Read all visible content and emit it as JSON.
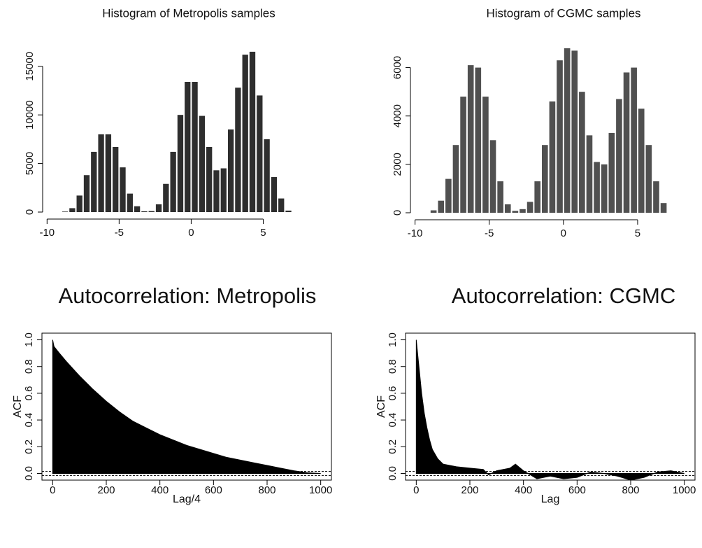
{
  "chart_data": [
    {
      "type": "histogram",
      "title": "Histogram of Metropolis samples",
      "color": "#2e2e2e",
      "bins": [
        -9,
        -8.5,
        -8,
        -7.5,
        -7,
        -6.5,
        -6,
        -5.5,
        -5,
        -4.5,
        -4,
        -3.5,
        -3,
        -2.5,
        -2,
        -1.5,
        -1,
        -0.5,
        0,
        0.5,
        1,
        1.5,
        2,
        2.5,
        3,
        3.5,
        4,
        4.5,
        5,
        5.5,
        6,
        6.5,
        7
      ],
      "values": [
        50,
        400,
        1700,
        3800,
        6200,
        8000,
        8000,
        6700,
        4600,
        1900,
        600,
        80,
        100,
        800,
        2900,
        6200,
        10000,
        13400,
        13400,
        9900,
        6700,
        4300,
        4500,
        8500,
        12800,
        16200,
        16500,
        12000,
        7500,
        3600,
        1400,
        150
      ],
      "xlim": [
        -10.5,
        7.5
      ],
      "xticks": [
        -10,
        -5,
        0,
        5
      ],
      "ylim": [
        0,
        17000
      ],
      "yticks": [
        0,
        5000,
        10000,
        15000
      ]
    },
    {
      "type": "histogram",
      "title": "Histogram of CGMC samples",
      "color": "#505050",
      "bins": [
        -9,
        -8.5,
        -8,
        -7.5,
        -7,
        -6.5,
        -6,
        -5.5,
        -5,
        -4.5,
        -4,
        -3.5,
        -3,
        -2.5,
        -2,
        -1.5,
        -1,
        -0.5,
        0,
        0.5,
        1,
        1.5,
        2,
        2.5,
        3,
        3.5,
        4,
        4.5,
        5,
        5.5,
        6,
        6.5,
        7
      ],
      "values": [
        100,
        500,
        1400,
        2800,
        4800,
        6100,
        6000,
        4800,
        3000,
        1300,
        350,
        80,
        150,
        450,
        1300,
        2800,
        4600,
        6300,
        6800,
        6700,
        5000,
        3200,
        2100,
        2000,
        3300,
        4700,
        5800,
        6000,
        4300,
        2800,
        1300,
        400
      ],
      "xlim": [
        -10.5,
        7.5
      ],
      "xticks": [
        -10,
        -5,
        0,
        5
      ],
      "ylim": [
        0,
        7000
      ],
      "yticks": [
        0,
        2000,
        4000,
        6000
      ]
    },
    {
      "type": "area",
      "title": "Autocorrelation: Metropolis",
      "x_label": "Lag/4",
      "y_label": "ACF",
      "color": "#000000",
      "x": [
        0,
        5,
        25,
        50,
        100,
        150,
        200,
        250,
        300,
        350,
        400,
        450,
        500,
        550,
        600,
        650,
        700,
        750,
        800,
        850,
        900,
        950,
        1000
      ],
      "values": [
        1.0,
        0.95,
        0.9,
        0.84,
        0.73,
        0.63,
        0.54,
        0.46,
        0.39,
        0.34,
        0.29,
        0.25,
        0.21,
        0.18,
        0.15,
        0.12,
        0.1,
        0.08,
        0.06,
        0.04,
        0.02,
        0.005,
        0.0
      ],
      "conf_lines": [
        0.015,
        -0.015
      ],
      "xlim": [
        -40,
        1040
      ],
      "xticks": [
        0,
        200,
        400,
        600,
        800,
        1000
      ],
      "ylim": [
        -0.05,
        1.05
      ],
      "yticks": [
        {
          "value": 0,
          "label": "0.0"
        },
        0.2,
        0.4,
        0.6,
        0.8,
        {
          "value": 1,
          "label": "1.0"
        }
      ]
    },
    {
      "type": "area",
      "title": "Autocorrelation: CGMC",
      "x_label": "Lag",
      "y_label": "ACF",
      "color": "#000000",
      "x": [
        0,
        10,
        20,
        30,
        40,
        50,
        60,
        80,
        100,
        150,
        200,
        250,
        270,
        300,
        350,
        370,
        400,
        450,
        500,
        550,
        600,
        650,
        700,
        750,
        800,
        850,
        900,
        950,
        1000
      ],
      "values": [
        1.0,
        0.8,
        0.6,
        0.45,
        0.34,
        0.25,
        0.18,
        0.11,
        0.07,
        0.05,
        0.04,
        0.03,
        -0.01,
        0.02,
        0.04,
        0.07,
        0.02,
        -0.04,
        -0.02,
        -0.04,
        -0.03,
        0.01,
        0.0,
        -0.02,
        -0.05,
        -0.03,
        0.01,
        0.02,
        0.0
      ],
      "conf_lines": [
        0.015,
        -0.015
      ],
      "xlim": [
        -40,
        1040
      ],
      "xticks": [
        0,
        200,
        400,
        600,
        800,
        1000
      ],
      "ylim": [
        -0.05,
        1.05
      ],
      "yticks": [
        {
          "value": 0,
          "label": "0.0"
        },
        0.2,
        0.4,
        0.6,
        0.8,
        {
          "value": 1,
          "label": "1.0"
        }
      ]
    }
  ]
}
